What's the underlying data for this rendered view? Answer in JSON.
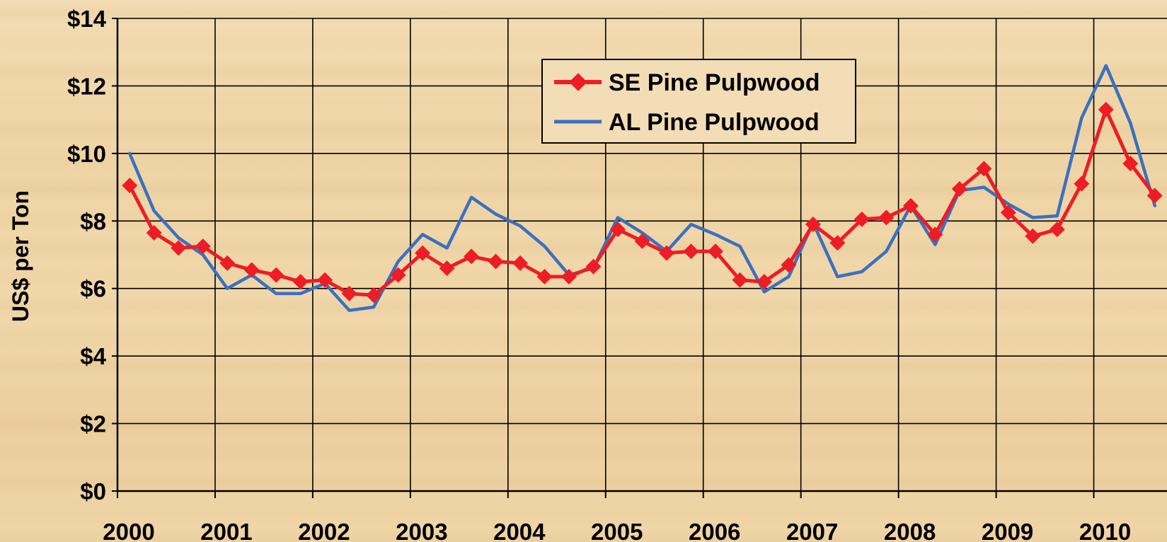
{
  "chart_data": {
    "type": "line",
    "title": "",
    "xlabel": "",
    "ylabel": "US$ per Ton",
    "ylim": [
      0,
      14
    ],
    "xlim": [
      2000.0,
      2010.75
    ],
    "yticks": [
      0,
      2,
      4,
      6,
      8,
      10,
      12,
      14
    ],
    "ytick_labels": [
      "$0",
      "$2",
      "$4",
      "$6",
      "$8",
      "$10",
      "$12",
      "$14"
    ],
    "xticks": [
      2000,
      2001,
      2002,
      2003,
      2004,
      2005,
      2006,
      2007,
      2008,
      2009,
      2010
    ],
    "xtick_labels": [
      "2000",
      "2001",
      "2002",
      "2003",
      "2004",
      "2005",
      "2006",
      "2007",
      "2008",
      "2009",
      "2010"
    ],
    "grid": true,
    "legend_position": "top-center",
    "series": [
      {
        "name": "SE Pine Pulpwood",
        "color": "#ee1c25",
        "marker": "diamond",
        "x": [
          2000.125,
          2000.375,
          2000.625,
          2000.875,
          2001.125,
          2001.375,
          2001.625,
          2001.875,
          2002.125,
          2002.375,
          2002.625,
          2002.875,
          2003.125,
          2003.375,
          2003.625,
          2003.875,
          2004.125,
          2004.375,
          2004.625,
          2004.875,
          2005.125,
          2005.375,
          2005.625,
          2005.875,
          2006.125,
          2006.375,
          2006.625,
          2006.875,
          2007.125,
          2007.375,
          2007.625,
          2007.875,
          2008.125,
          2008.375,
          2008.625,
          2008.875,
          2009.125,
          2009.375,
          2009.625,
          2009.875,
          2010.125,
          2010.375,
          2010.625
        ],
        "values": [
          9.05,
          7.65,
          7.2,
          7.25,
          6.75,
          6.55,
          6.4,
          6.2,
          6.25,
          5.85,
          5.8,
          6.4,
          7.05,
          6.6,
          6.95,
          6.8,
          6.75,
          6.35,
          6.35,
          6.65,
          7.75,
          7.4,
          7.05,
          7.1,
          7.1,
          6.25,
          6.2,
          6.7,
          7.9,
          7.35,
          8.05,
          8.1,
          8.45,
          7.6,
          8.95,
          9.55,
          8.25,
          7.55,
          7.75,
          9.1,
          11.3,
          9.7,
          8.75
        ]
      },
      {
        "name": "AL Pine Pulpwood",
        "color": "#3a70c0",
        "marker": "none",
        "x": [
          2000.125,
          2000.375,
          2000.625,
          2000.875,
          2001.125,
          2001.375,
          2001.625,
          2001.875,
          2002.125,
          2002.375,
          2002.625,
          2002.875,
          2003.125,
          2003.375,
          2003.625,
          2003.875,
          2004.125,
          2004.375,
          2004.625,
          2004.875,
          2005.125,
          2005.375,
          2005.625,
          2005.875,
          2006.125,
          2006.375,
          2006.625,
          2006.875,
          2007.125,
          2007.375,
          2007.625,
          2007.875,
          2008.125,
          2008.375,
          2008.625,
          2008.875,
          2009.125,
          2009.375,
          2009.625,
          2009.875,
          2010.125,
          2010.375,
          2010.625
        ],
        "values": [
          10.0,
          8.3,
          7.5,
          7.0,
          6.0,
          6.4,
          5.85,
          5.85,
          6.15,
          5.35,
          5.45,
          6.8,
          7.6,
          7.2,
          8.7,
          8.2,
          7.85,
          7.25,
          6.4,
          6.6,
          8.1,
          7.65,
          7.1,
          7.9,
          7.6,
          7.25,
          5.9,
          6.35,
          7.95,
          6.35,
          6.5,
          7.1,
          8.45,
          7.3,
          8.9,
          9.0,
          8.5,
          8.1,
          8.15,
          11.05,
          12.6,
          10.9,
          8.45
        ]
      }
    ]
  }
}
